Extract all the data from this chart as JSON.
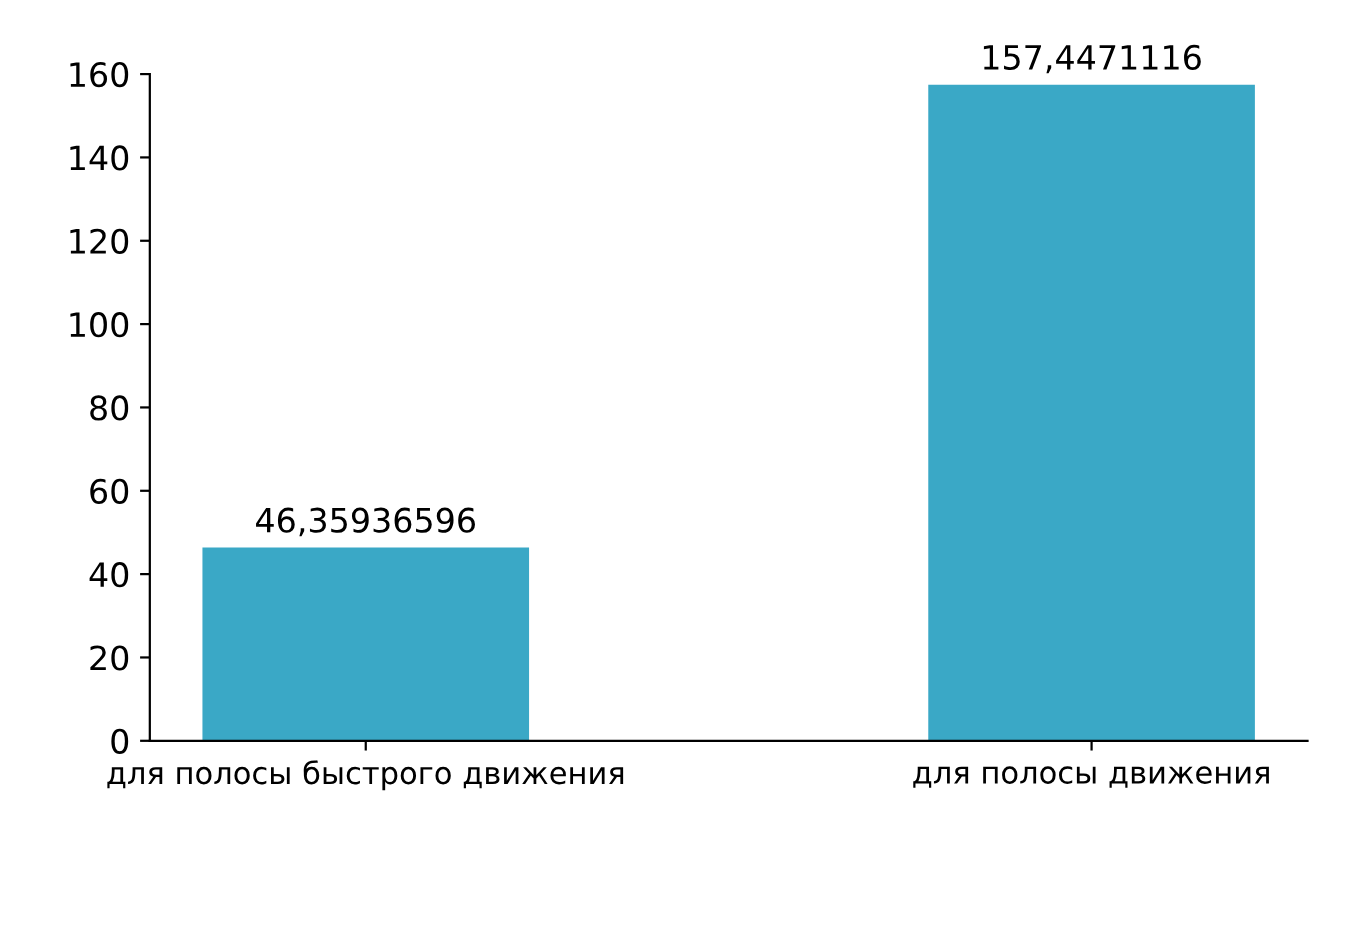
{
  "chart_data": {
    "type": "bar",
    "categories": [
      "для полосы быстрого движения",
      "для полосы движения"
    ],
    "values": [
      46.35936596,
      157.4471116
    ],
    "value_labels": [
      "46,35936596",
      "157,4471116"
    ],
    "color": "#3aa8c6",
    "ylim": [
      0,
      160
    ],
    "yticks": [
      0,
      20,
      40,
      60,
      80,
      100,
      120,
      140,
      160
    ],
    "grid": false,
    "legend": false
  }
}
